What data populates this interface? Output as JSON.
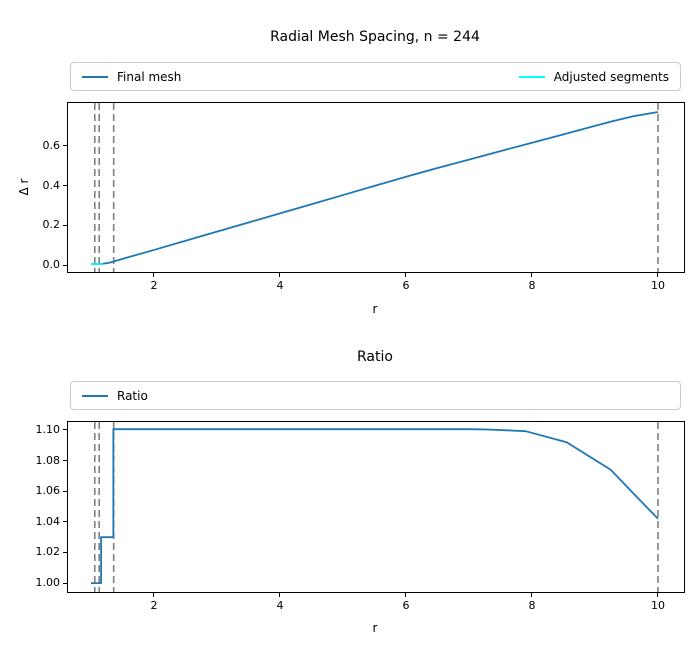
{
  "figure": {
    "background": "#ffffff"
  },
  "colors": {
    "primary_line": "#1f77b4",
    "adjusted_line": "#00ffff",
    "boundary_line": "#808080",
    "spine": "#000000",
    "legend_border": "#cbcbcb",
    "text": "#000000"
  },
  "chart_data": [
    {
      "type": "line",
      "title": "Radial Mesh Spacing, n = 244",
      "xlabel": "r",
      "ylabel": "Δ r",
      "grid": false,
      "legend_position": "above axes, full-width row",
      "xlim": [
        0.635,
        10.413
      ],
      "ylim": [
        -0.035,
        0.815
      ],
      "xticks": {
        "values": [
          2,
          4,
          6,
          8,
          10
        ],
        "labels": [
          "2",
          "4",
          "6",
          "8",
          "10"
        ]
      },
      "yticks": {
        "values": [
          0.0,
          0.2,
          0.4,
          0.6
        ],
        "labels": [
          "0.0",
          "0.2",
          "0.4",
          "0.6"
        ]
      },
      "legend": [
        {
          "label": "Final mesh",
          "color": "#1f77b4"
        },
        {
          "label": "Adjusted segments",
          "color": "#00ffff"
        }
      ],
      "vlines": {
        "x": [
          1.06,
          1.13,
          1.36,
          10.0
        ],
        "color": "#808080",
        "style": "dashed"
      },
      "series": [
        {
          "name": "Final mesh",
          "color": "#1f77b4",
          "x": [
            1.0,
            1.05,
            1.1,
            1.15,
            1.2,
            1.3,
            1.5,
            2.0,
            2.5,
            3.0,
            3.5,
            4.0,
            4.5,
            5.0,
            5.5,
            6.0,
            6.5,
            7.0,
            7.5,
            8.0,
            8.5,
            9.0,
            9.3,
            9.6,
            10.0
          ],
          "y": [
            0.005,
            0.005,
            0.005,
            0.006,
            0.007,
            0.012,
            0.031,
            0.076,
            0.122,
            0.168,
            0.214,
            0.26,
            0.306,
            0.352,
            0.398,
            0.444,
            0.488,
            0.53,
            0.573,
            0.615,
            0.657,
            0.7,
            0.725,
            0.748,
            0.77
          ]
        },
        {
          "name": "Adjusted segments",
          "color": "#00ffff",
          "x": [
            1.0,
            1.19
          ],
          "y": [
            0.005,
            0.005
          ]
        }
      ]
    },
    {
      "type": "line",
      "title": "Ratio",
      "xlabel": "r",
      "ylabel": "",
      "grid": false,
      "legend_position": "above axes, full-width row",
      "xlim": [
        0.635,
        10.413
      ],
      "ylim": [
        0.9942,
        1.1052
      ],
      "xticks": {
        "values": [
          2,
          4,
          6,
          8,
          10
        ],
        "labels": [
          "2",
          "4",
          "6",
          "8",
          "10"
        ]
      },
      "yticks": {
        "values": [
          1.0,
          1.02,
          1.04,
          1.06,
          1.08,
          1.1
        ],
        "labels": [
          "1.00",
          "1.02",
          "1.04",
          "1.06",
          "1.08",
          "1.10"
        ]
      },
      "legend": [
        {
          "label": "Ratio",
          "color": "#1f77b4"
        }
      ],
      "vlines": {
        "x": [
          1.06,
          1.13,
          1.36,
          10.0
        ],
        "color": "#808080",
        "style": "dashed"
      },
      "series": [
        {
          "name": "Ratio",
          "color": "#1f77b4",
          "x": [
            1.0,
            1.16,
            1.16,
            1.355,
            1.355,
            1.5,
            2.0,
            3.0,
            4.0,
            5.0,
            6.0,
            7.0,
            7.3,
            7.9,
            8.55,
            9.25,
            9.6,
            10.0
          ],
          "y": [
            1.0,
            1.0,
            1.03,
            1.03,
            1.1005,
            1.1005,
            1.1005,
            1.1005,
            1.1005,
            1.1005,
            1.1005,
            1.1005,
            1.1003,
            1.0992,
            1.092,
            1.074,
            1.059,
            1.042
          ]
        }
      ]
    }
  ]
}
